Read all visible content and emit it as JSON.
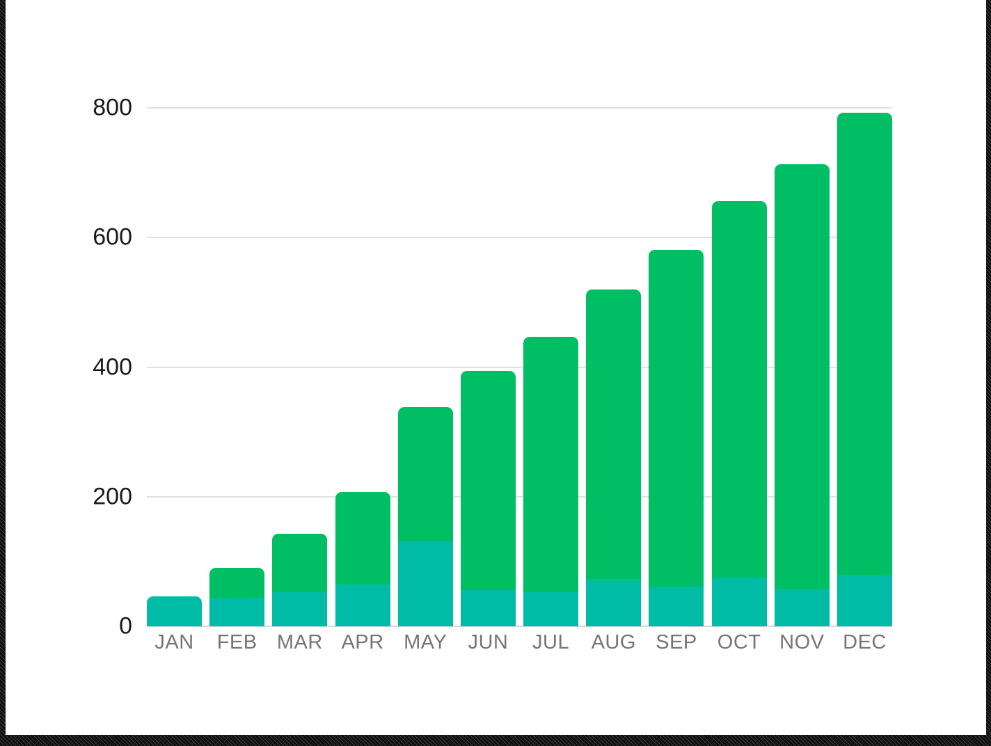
{
  "chart_data": {
    "type": "bar",
    "stacked": true,
    "title": "",
    "xlabel": "",
    "ylabel": "",
    "categories": [
      "JAN",
      "FEB",
      "MAR",
      "APR",
      "MAY",
      "JUN",
      "JUL",
      "AUG",
      "SEP",
      "OCT",
      "NOV",
      "DEC"
    ],
    "series": [
      {
        "name": "bottom-segment-teal",
        "color": "#00bca6",
        "values": [
          46,
          44,
          53,
          64,
          131,
          56,
          53,
          73,
          61,
          75,
          57,
          79
        ]
      },
      {
        "name": "top-segment-green",
        "color": "#00be64",
        "values": [
          0,
          46,
          90,
          143,
          207,
          338,
          394,
          447,
          520,
          581,
          656,
          713
        ]
      }
    ],
    "stack_totals": [
      46,
      90,
      143,
      207,
      338,
      394,
      447,
      520,
      581,
      656,
      713,
      792
    ],
    "ylim": [
      0,
      800
    ],
    "yticks": [
      0,
      200,
      400,
      600,
      800
    ],
    "grid": "horizontal",
    "legend": "none",
    "bar_style": "rounded-top-corners",
    "gridline_color": "#e1e1e1",
    "ytick_color": "#1a1a1a",
    "xtick_color": "#757575"
  }
}
